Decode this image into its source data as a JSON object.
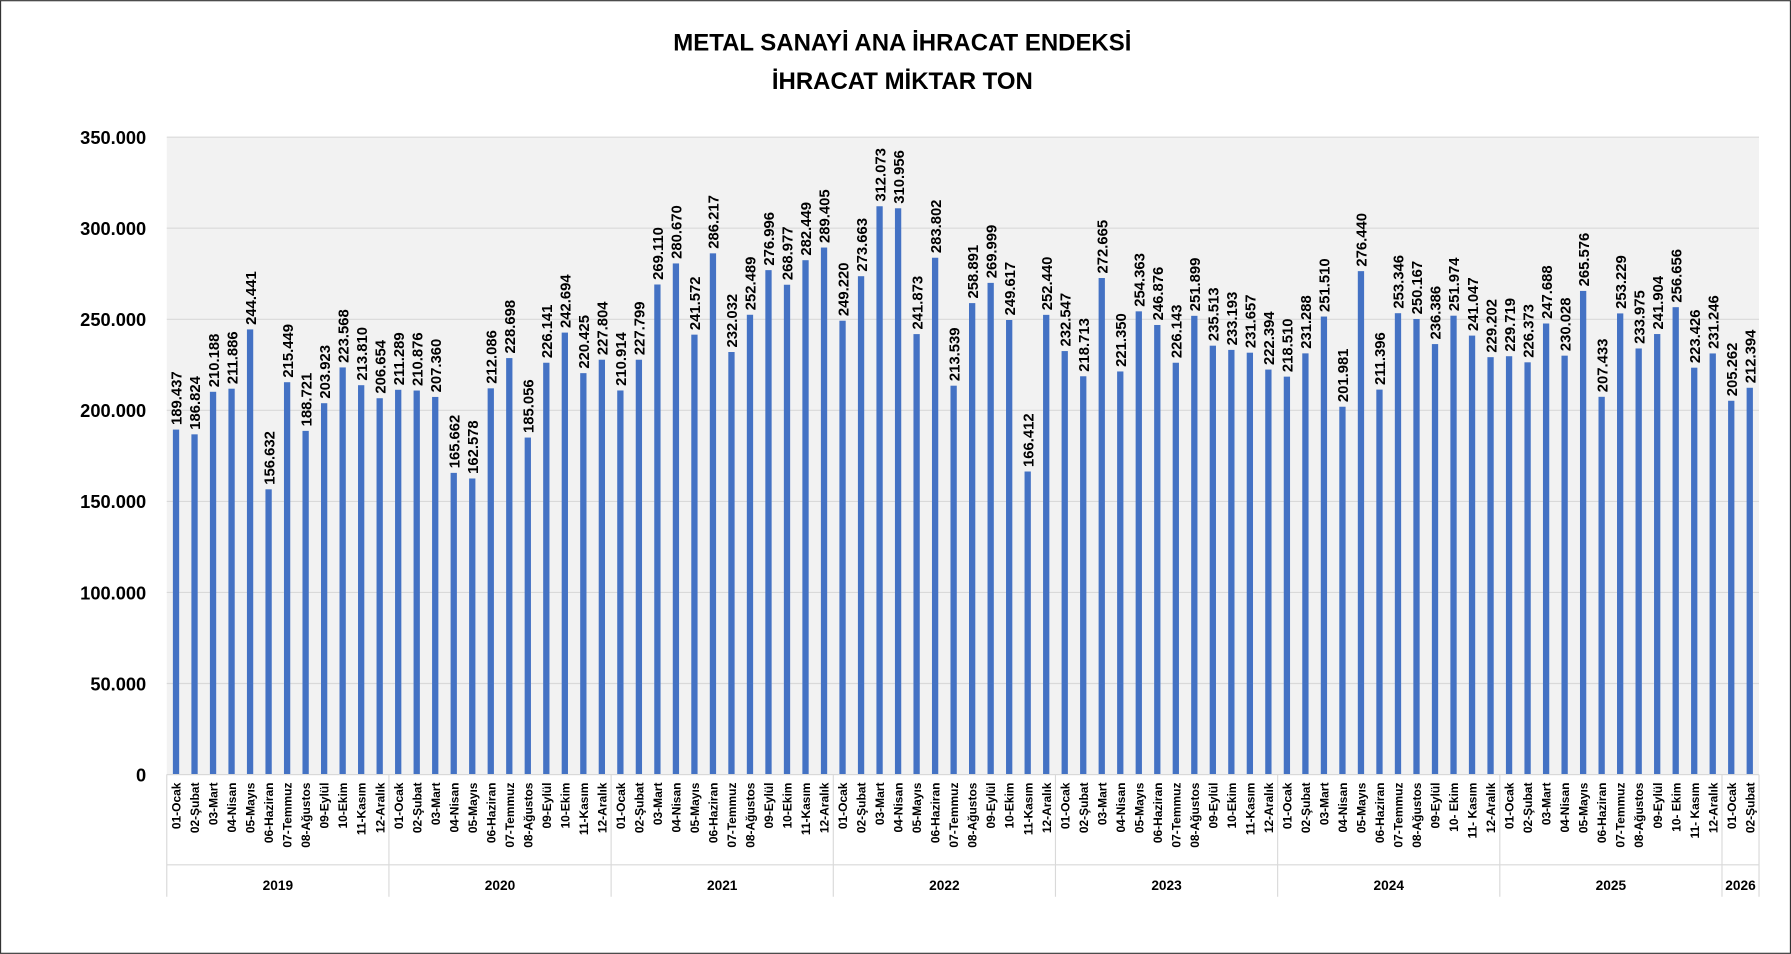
{
  "chart_data": {
    "type": "bar",
    "title": "METAL SANAYİ ANA İHRACAT ENDEKSİ",
    "subtitle": "İHRACAT MİKTAR TON",
    "color": "#4472c4",
    "grid": true,
    "categories": [
      "01-Ocak",
      "02-Şubat",
      "03-Mart",
      "04-Nisan",
      "05-Mayıs",
      "06-Haziran",
      "07-Temmuz",
      "08-Ağustos",
      "09-Eylül",
      "10-Ekim",
      "11-Kasım",
      "12-Aralık",
      "01-Ocak",
      "02-Şubat",
      "03-Mart",
      "04-Nisan",
      "05-Mayıs",
      "06-Haziran",
      "07-Temmuz",
      "08-Ağustos",
      "09-Eylül",
      "10-Ekim",
      "11-Kasım",
      "12-Aralık",
      "01-Ocak",
      "02-Şubat",
      "03-Mart",
      "04-Nisan",
      "05-Mayıs",
      "06-Haziran",
      "07-Temmuz",
      "08-Ağustos",
      "09-Eylül",
      "10-Ekim",
      "11-Kasım",
      "12-Aralık",
      "01-Ocak",
      "02-Şubat",
      "03-Mart",
      "04-Nisan",
      "05-Mayıs",
      "06-Haziran",
      "07-Temmuz",
      "08-Ağustos",
      "09-Eylül",
      "10-Ekim",
      "11-Kasım",
      "12-Aralık",
      "01-Ocak",
      "02-Şubat",
      "03-Mart",
      "04-Nisan",
      "05-Mayıs",
      "06-Haziran",
      "07-Temmuz",
      "08-Ağustos",
      "09-Eylül",
      "10-Ekim",
      "11-Kasım",
      "12-Aralık",
      "01-Ocak",
      "02-Şubat",
      "03-Mart",
      "04-Nisan",
      "05-Mayıs",
      "06-Haziran",
      "07-Temmuz",
      "08-Ağustos",
      "09-Eylül",
      "10- Ekim",
      "11- Kasım",
      "12-Aralık",
      "01-Ocak",
      "02-Şubat",
      "03-Mart",
      "04-Nisan",
      "05-Mayıs",
      "06-Haziran",
      "07-Temmuz",
      "08-Ağustos",
      "09-Eylül",
      "10- Ekim",
      "11- Kasım",
      "12-Aralık",
      "01-Ocak",
      "02-Şubat"
    ],
    "year_groups": [
      {
        "label": "2019",
        "size": 12
      },
      {
        "label": "2020",
        "size": 12
      },
      {
        "label": "2021",
        "size": 12
      },
      {
        "label": "2022",
        "size": 12
      },
      {
        "label": "2023",
        "size": 12
      },
      {
        "label": "2024",
        "size": 12
      },
      {
        "label": "2025",
        "size": 12
      },
      {
        "label": "2026",
        "size": 2
      }
    ],
    "values": [
      189437,
      186824,
      210188,
      211886,
      244441,
      156632,
      215449,
      188721,
      203923,
      223568,
      213810,
      206654,
      211289,
      210876,
      207360,
      165662,
      162578,
      212086,
      228698,
      185056,
      226141,
      242694,
      220425,
      227804,
      210914,
      227799,
      269110,
      280670,
      241572,
      286217,
      232032,
      252489,
      276996,
      268977,
      282449,
      289405,
      249220,
      273663,
      312073,
      310956,
      241873,
      283802,
      213539,
      258891,
      269999,
      249617,
      166412,
      252440,
      232547,
      218713,
      272665,
      221350,
      254363,
      246876,
      226143,
      251899,
      235513,
      233193,
      231657,
      222394,
      218510,
      231288,
      251510,
      201981,
      276440,
      211396,
      253346,
      250167,
      236386,
      251974,
      241047,
      229202,
      229719,
      226373,
      247688,
      230028,
      265576,
      207433,
      253229,
      233975,
      241904,
      256656,
      223426,
      231246,
      205262,
      212394
    ],
    "value_labels": [
      "189.437",
      "186.824",
      "210.188",
      "211.886",
      "244.441",
      "156.632",
      "215.449",
      "188.721",
      "203.923",
      "223.568",
      "213.810",
      "206.654",
      "211.289",
      "210.876",
      "207.360",
      "165.662",
      "162.578",
      "212.086",
      "228.698",
      "185.056",
      "226.141",
      "242.694",
      "220.425",
      "227.804",
      "210.914",
      "227.799",
      "269.110",
      "280.670",
      "241.572",
      "286.217",
      "232.032",
      "252.489",
      "276.996",
      "268.977",
      "282.449",
      "289.405",
      "249.220",
      "273.663",
      "312.073",
      "310.956",
      "241.873",
      "283.802",
      "213.539",
      "258.891",
      "269.999",
      "249.617",
      "166.412",
      "252.440",
      "232.547",
      "218.713",
      "272.665",
      "221.350",
      "254.363",
      "246.876",
      "226.143",
      "251.899",
      "235.513",
      "233.193",
      "231.657",
      "222.394",
      "218.510",
      "231.288",
      "251.510",
      "201.981",
      "276.440",
      "211.396",
      "253.346",
      "250.167",
      "236.386",
      "251.974",
      "241.047",
      "229.202",
      "229.719",
      "226.373",
      "247.688",
      "230.028",
      "265.576",
      "207.433",
      "253.229",
      "233.975",
      "241.904",
      "256.656",
      "223.426",
      "231.246",
      "205.262",
      "212.394"
    ],
    "ylim": [
      0,
      350000
    ],
    "yticks": [
      0,
      {
        "value": 50000,
        "label": "50.000"
      },
      {
        "value": 100000,
        "label": "100.000"
      },
      {
        "value": 150000,
        "label": "150.000"
      },
      {
        "value": 200000,
        "label": "200.000"
      },
      {
        "value": 250000,
        "label": "250.000"
      },
      {
        "value": 300000,
        "label": "300.000"
      },
      {
        "value": 350000,
        "label": "350.000"
      }
    ]
  }
}
